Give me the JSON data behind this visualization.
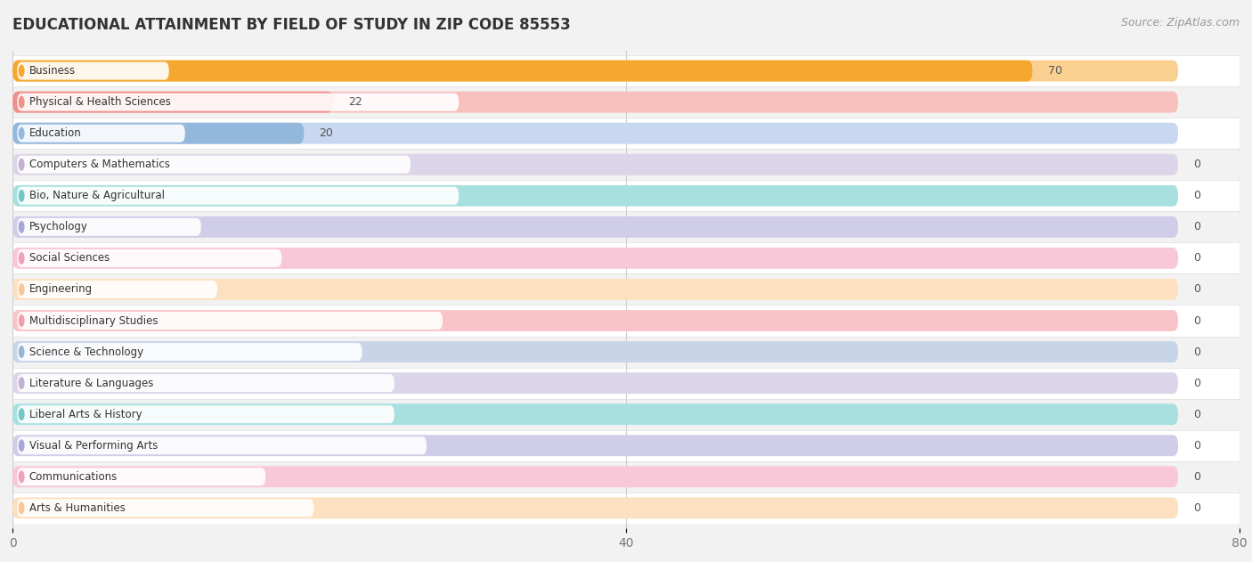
{
  "title": "EDUCATIONAL ATTAINMENT BY FIELD OF STUDY IN ZIP CODE 85553",
  "source": "Source: ZipAtlas.com",
  "categories": [
    "Business",
    "Physical & Health Sciences",
    "Education",
    "Computers & Mathematics",
    "Bio, Nature & Agricultural",
    "Psychology",
    "Social Sciences",
    "Engineering",
    "Multidisciplinary Studies",
    "Science & Technology",
    "Literature & Languages",
    "Liberal Arts & History",
    "Visual & Performing Arts",
    "Communications",
    "Arts & Humanities"
  ],
  "values": [
    70,
    22,
    20,
    0,
    0,
    0,
    0,
    0,
    0,
    0,
    0,
    0,
    0,
    0,
    0
  ],
  "bar_colors": [
    "#F5A830",
    "#F0908A",
    "#92B8DC",
    "#C4B0D4",
    "#72C8C8",
    "#A8A8D8",
    "#F0A0BC",
    "#F8C898",
    "#F0A0A8",
    "#9AB4D4",
    "#C4B0D4",
    "#72C8C8",
    "#A8A8D8",
    "#F0A0BC",
    "#F8C898"
  ],
  "bar_bg_colors": [
    "#FAD090",
    "#F8C0BC",
    "#C8D8F0",
    "#DCD4E8",
    "#A8E0E0",
    "#D0CDE8",
    "#F8C8D8",
    "#FCE0C0",
    "#F8C4C8",
    "#C8D4E8",
    "#DCD4E8",
    "#A8E0E0",
    "#D0CDE8",
    "#F8C8D8",
    "#FCE0C0"
  ],
  "xlim": [
    0,
    80
  ],
  "xticks": [
    0,
    40,
    80
  ],
  "background_color": "#f2f2f2",
  "row_bg_white": "#ffffff",
  "title_fontsize": 12,
  "source_fontsize": 9,
  "bar_height": 0.68,
  "min_bar_width": 18
}
